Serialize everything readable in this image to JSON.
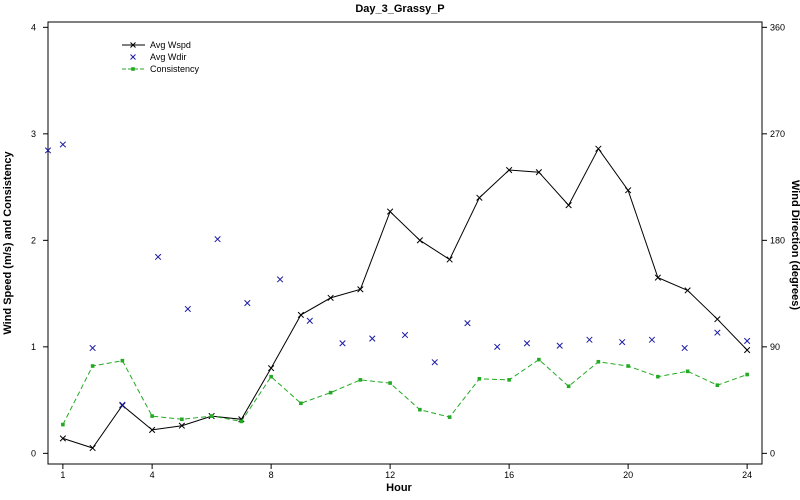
{
  "chart_data": {
    "type": "line",
    "title": "Day_3_Grassy_P",
    "xlabel": "Hour",
    "ylabel_left": "Wind Speed (m/s) and Consistency",
    "ylabel_right": "Wind Direction (degrees)",
    "xlim": [
      0.5,
      24.5
    ],
    "ylim_left": [
      -0.1,
      4.05
    ],
    "ylim_right": [
      -9,
      364.5
    ],
    "x_ticks": [
      1,
      4,
      8,
      12,
      16,
      20,
      24
    ],
    "y_left_ticks": [
      0,
      1,
      2,
      3,
      4
    ],
    "y_right_ticks": [
      0,
      90,
      180,
      270,
      360
    ],
    "legend_position": "top-left",
    "series": [
      {
        "name": "Avg Wspd",
        "axis": "left",
        "style": "line-x-markers",
        "color": "#000000",
        "x": [
          1,
          2,
          3,
          4,
          5,
          6,
          7,
          8,
          9,
          10,
          11,
          12,
          13,
          14,
          15,
          16,
          17,
          18,
          19,
          20,
          21,
          22,
          23,
          24
        ],
        "y": [
          0.14,
          0.05,
          0.45,
          0.22,
          0.26,
          0.35,
          0.32,
          0.8,
          1.3,
          1.46,
          1.54,
          2.27,
          2.0,
          1.82,
          2.4,
          2.66,
          2.64,
          2.33,
          2.86,
          2.47,
          1.65,
          1.53,
          1.26,
          0.97
        ]
      },
      {
        "name": "Avg Wdir",
        "axis": "right",
        "style": "x-markers",
        "color": "#1a1aa6",
        "x": [
          0.5,
          1,
          2,
          3,
          4.2,
          5.2,
          6.2,
          7.2,
          8.3,
          9.3,
          10.4,
          11.4,
          12.5,
          13.5,
          14.6,
          15.6,
          16.6,
          17.7,
          18.7,
          19.8,
          20.8,
          21.9,
          23,
          24
        ],
        "y": [
          256,
          261,
          89,
          41,
          166,
          122,
          181,
          127,
          147,
          112,
          93,
          97,
          100,
          77,
          110,
          90,
          93,
          91,
          96,
          94,
          96,
          89,
          102,
          95
        ]
      },
      {
        "name": "Consistency",
        "axis": "left",
        "style": "dashed-square-markers",
        "color": "#22aa22",
        "x": [
          1,
          2,
          3,
          4,
          5,
          6,
          7,
          8,
          9,
          10,
          11,
          12,
          13,
          14,
          15,
          16,
          17,
          18,
          19,
          20,
          21,
          22,
          23,
          24
        ],
        "y": [
          0.27,
          0.82,
          0.87,
          0.35,
          0.32,
          0.35,
          0.3,
          0.72,
          0.47,
          0.57,
          0.69,
          0.66,
          0.41,
          0.34,
          0.7,
          0.69,
          0.88,
          0.63,
          0.86,
          0.82,
          0.72,
          0.77,
          0.64,
          0.74
        ]
      }
    ]
  }
}
